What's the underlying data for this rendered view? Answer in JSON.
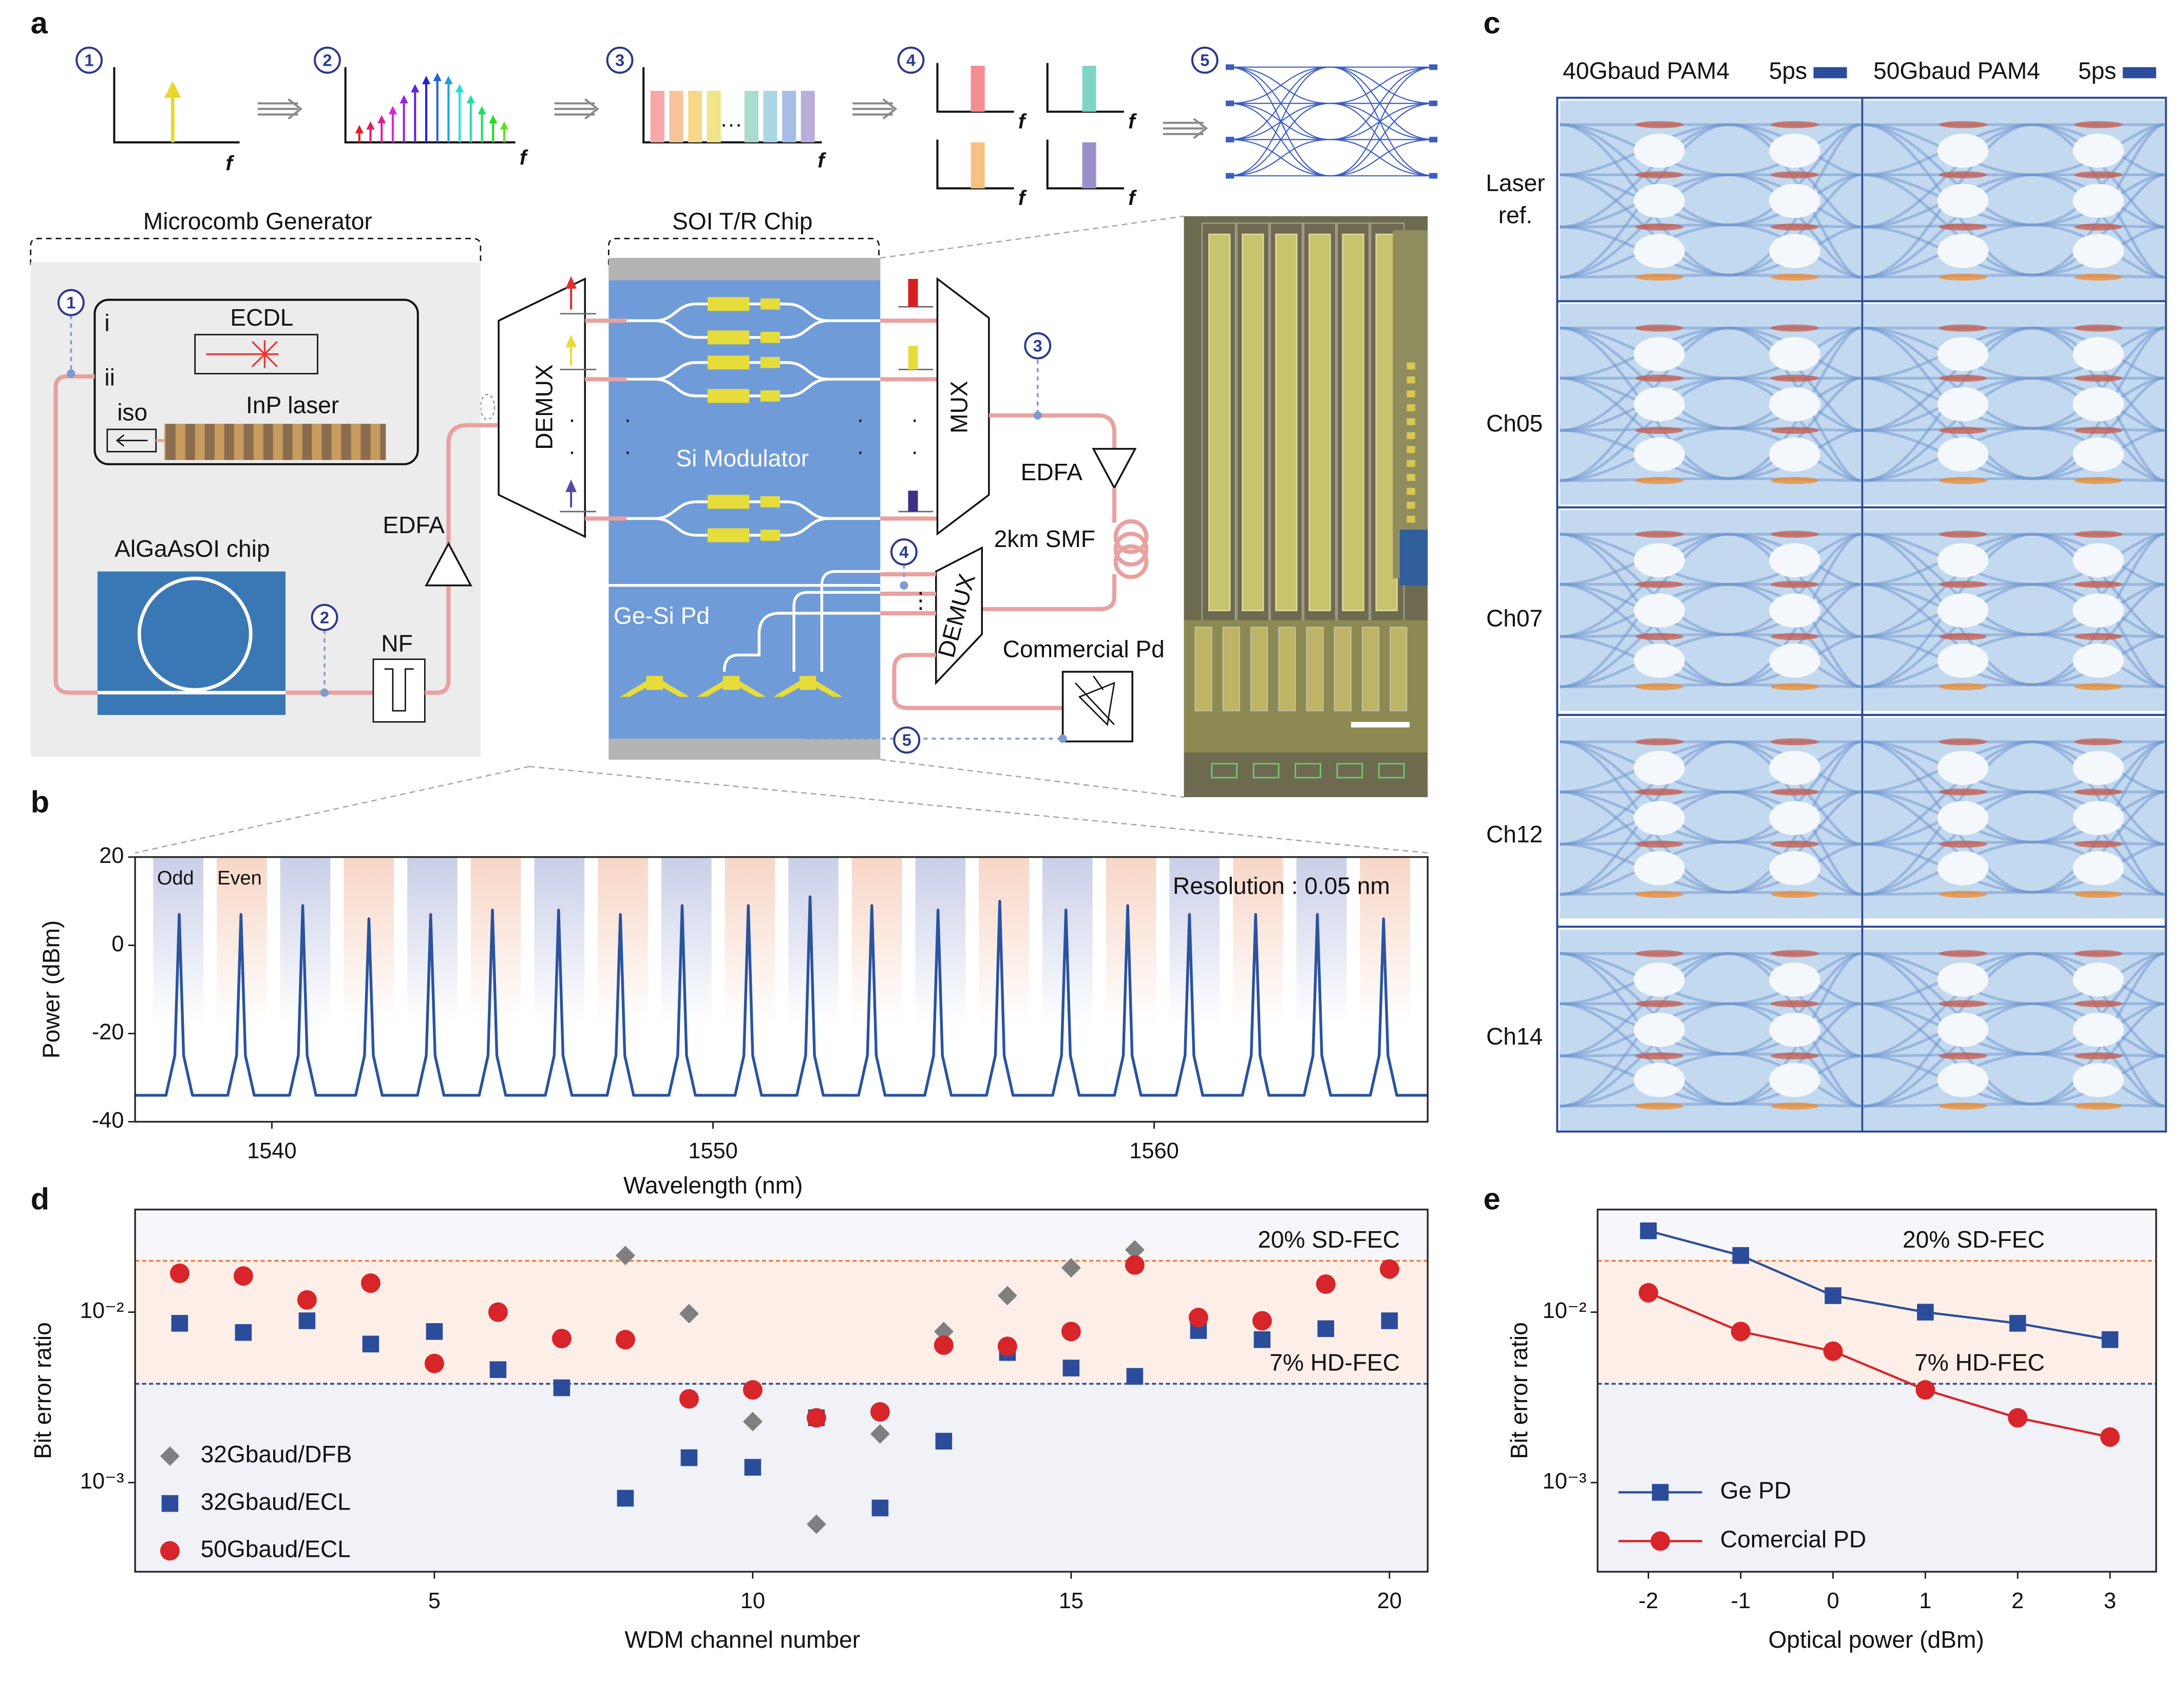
{
  "panel_labels": [
    "a",
    "b",
    "c",
    "d",
    "e"
  ],
  "diagram": {
    "steps": [
      "1",
      "2",
      "3",
      "4",
      "5"
    ],
    "freq_axis": "f",
    "microcomb": "Microcomb Generator",
    "soi": "SOI T/R Chip",
    "ecdl": "ECDL",
    "i": "i",
    "ii": "ii",
    "iso": "iso",
    "inp": "InP laser",
    "algaas": "AlGaAsOI chip",
    "edfa": "EDFA",
    "nf": "NF",
    "demux": "DEMUX",
    "modulator": "Si Modulator",
    "mux": "MUX",
    "smf": "2km SMF",
    "gesi": "Ge-Si Pd",
    "commercial": "Commercial Pd"
  },
  "eye_diagrams": {
    "columns": [
      "40Gbaud PAM4",
      "50Gbaud PAM4"
    ],
    "scale": "5ps",
    "rows": [
      "Laser ref.",
      "Ch05",
      "Ch07",
      "Ch12",
      "Ch14"
    ]
  },
  "chart_data": [
    {
      "type": "line",
      "x": [
        1536.9,
        1537.6,
        1537.8,
        1537.9,
        1538.0,
        1538.2,
        1539.0,
        1539.2,
        1539.3,
        1539.4,
        1539.6,
        1540.4,
        1540.6,
        1540.7,
        1540.8,
        1541.0,
        1541.9,
        1542.1,
        1542.2,
        1542.3,
        1542.5,
        1543.3,
        1543.5,
        1543.6,
        1543.7,
        1543.9,
        1544.7,
        1544.9,
        1545.0,
        1545.1,
        1545.3,
        1546.2,
        1546.4,
        1546.5,
        1546.6,
        1546.8,
        1547.6,
        1547.8,
        1547.9,
        1548.0,
        1548.2,
        1549.0,
        1549.2,
        1549.3,
        1549.4,
        1549.6,
        1550.5,
        1550.7,
        1550.8,
        1550.9,
        1551.1,
        1551.9,
        1552.1,
        1552.2,
        1552.3,
        1552.5,
        1553.3,
        1553.5,
        1553.6,
        1553.7,
        1553.9,
        1554.8,
        1555.0,
        1555.1,
        1555.2,
        1555.4,
        1556.2,
        1556.4,
        1556.5,
        1556.6,
        1556.8,
        1557.7,
        1557.9,
        1558.0,
        1558.1,
        1558.3,
        1559.1,
        1559.3,
        1559.4,
        1559.5,
        1559.7,
        1560.5,
        1560.7,
        1560.8,
        1560.9,
        1561.1,
        1562.0,
        1562.2,
        1562.3,
        1562.4,
        1562.6,
        1563.4,
        1563.6,
        1563.7,
        1563.8,
        1564.0,
        1564.9,
        1565.1,
        1565.2,
        1565.3,
        1565.5,
        1566.2
      ],
      "series": [
        {
          "color": "#2a53a0",
          "values": [
            -34,
            -34,
            -25,
            7,
            -25,
            -34,
            -34,
            -25,
            7,
            -25,
            -34,
            -34,
            -25,
            9,
            -25,
            -34,
            -34,
            -25,
            6,
            -25,
            -34,
            -34,
            -25,
            7,
            -25,
            -34,
            -34,
            -25,
            8,
            -25,
            -34,
            -34,
            -25,
            8,
            -25,
            -34,
            -34,
            -25,
            7,
            -25,
            -34,
            -34,
            -25,
            9,
            -25,
            -34,
            -34,
            -25,
            9,
            -25,
            -34,
            -34,
            -25,
            11,
            -25,
            -34,
            -34,
            -25,
            9,
            -25,
            -34,
            -34,
            -25,
            8,
            -25,
            -34,
            -34,
            -25,
            10,
            -25,
            -34,
            -34,
            -25,
            8,
            -25,
            -34,
            -34,
            -25,
            9,
            -25,
            -34,
            -34,
            -25,
            7,
            -25,
            -34,
            -34,
            -25,
            7,
            -25,
            -34,
            -34,
            -25,
            7,
            -25,
            -34,
            -34,
            -25,
            6,
            -25,
            -34,
            -34
          ]
        }
      ],
      "xlim": [
        1536.9,
        1566.2
      ],
      "xticks": [
        1540,
        1550,
        1560
      ],
      "ylim": [
        -40,
        20
      ],
      "yticks": [
        -40,
        -20,
        0,
        20
      ],
      "xlabel": "Wavelength (nm)",
      "ylabel": "Power (dBm)",
      "annotations": [
        "Odd",
        "Even",
        "Resolution : 0.05 nm"
      ]
    },
    {
      "type": "scatter",
      "log_y": true,
      "x": [
        1,
        2,
        3,
        4,
        5,
        6,
        7,
        8,
        9,
        10,
        11,
        12,
        13,
        14,
        15,
        16,
        17,
        18,
        19,
        20
      ],
      "series": [
        {
          "name": "32Gbaud/DFB",
          "color": "#7f7f7f",
          "marker": "diamond",
          "values": [
            null,
            null,
            null,
            null,
            null,
            null,
            null,
            0.0215,
            0.0098,
            0.00228,
            0.00057,
            0.00193,
            0.0077,
            0.0125,
            0.0182,
            0.0232,
            null,
            null,
            null,
            null
          ]
        },
        {
          "name": "32Gbaud/ECL",
          "color": "#2b4c9b",
          "marker": "square",
          "values": [
            0.0086,
            0.0076,
            0.0089,
            0.0065,
            0.0077,
            0.0046,
            0.0036,
            0.00081,
            0.0014,
            0.00123,
            0.0024,
            0.00071,
            0.00175,
            0.0058,
            0.0047,
            0.0042,
            0.0078,
            0.0069,
            0.008,
            0.0089
          ]
        },
        {
          "name": "50Gbaud/ECL",
          "color": "#d7252a",
          "marker": "circle",
          "values": [
            0.0169,
            0.0163,
            0.0118,
            0.0148,
            0.005,
            0.01,
            0.007,
            0.0069,
            0.0031,
            0.0035,
            0.0024,
            0.0026,
            0.0064,
            0.0063,
            0.0077,
            0.0189,
            0.0093,
            0.0089,
            0.0146,
            0.0179
          ]
        }
      ],
      "xlim": [
        0.3,
        20.6
      ],
      "xticks": [
        5,
        10,
        15,
        20
      ],
      "ylim": [
        0.0003,
        0.04
      ],
      "yticks": [
        {
          "value": 0.01,
          "label": "10⁻²"
        },
        {
          "value": 0.001,
          "label": "10⁻³"
        }
      ],
      "xlabel": "WDM channel number",
      "ylabel": "Bit error ratio",
      "thresholds": [
        {
          "label": "20% SD-FEC",
          "value": 0.02,
          "color": "#f0803c"
        },
        {
          "label": "7% HD-FEC",
          "value": 0.0038,
          "color": "#2b4c9b"
        }
      ],
      "legend": "lower left"
    },
    {
      "type": "line",
      "log_y": true,
      "markers": true,
      "x": [
        -2,
        -1,
        0,
        1,
        2,
        3
      ],
      "series": [
        {
          "name": "Ge PD",
          "color": "#2b4c9b",
          "marker": "square",
          "values": [
            0.03,
            0.0215,
            0.0125,
            0.01,
            0.0086,
            0.0069
          ]
        },
        {
          "name": "Comercial PD",
          "color": "#d7252a",
          "marker": "circle",
          "values": [
            0.013,
            0.0077,
            0.0059,
            0.0035,
            0.0024,
            0.00185
          ]
        }
      ],
      "xlim": [
        -2.55,
        3.5
      ],
      "xticks": [
        -2,
        -1,
        0,
        1,
        2,
        3
      ],
      "ylim": [
        0.0003,
        0.04
      ],
      "yticks": [
        {
          "value": 0.01,
          "label": "10⁻²"
        },
        {
          "value": 0.001,
          "label": "10⁻³"
        }
      ],
      "xlabel": "Optical power (dBm)",
      "ylabel": "Bit error ratio",
      "thresholds": [
        {
          "label": "20% SD-FEC",
          "value": 0.02,
          "color": "#f0803c"
        },
        {
          "label": "7% HD-FEC",
          "value": 0.0038,
          "color": "#2b4c9b"
        }
      ],
      "legend": "lower left"
    }
  ]
}
